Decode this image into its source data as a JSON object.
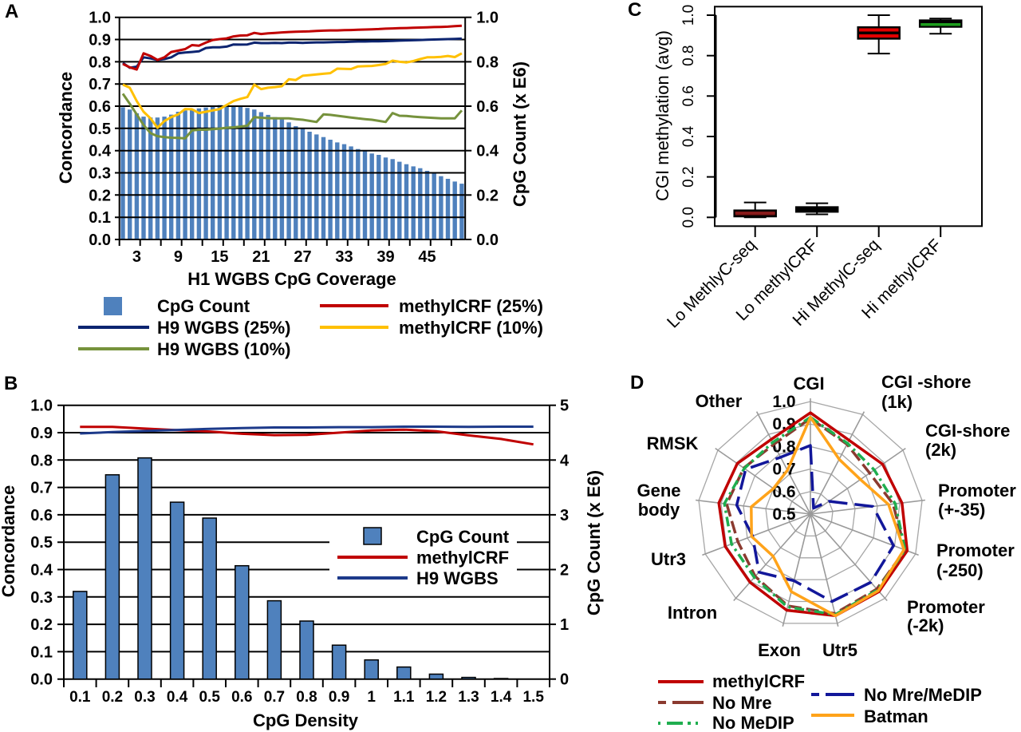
{
  "chart_data": [
    {
      "panel": "A",
      "type": "bar",
      "title": "",
      "xlabel": "H1 WGBS CpG Coverage",
      "ylabel": "Concordance",
      "y2label": "CpG Count (x E6)",
      "ylim": [
        0,
        1
      ],
      "y2lim": [
        0,
        1
      ],
      "grid": true,
      "legend": "bottom",
      "yticks": [
        "0.0",
        "0.1",
        "0.2",
        "0.3",
        "0.4",
        "0.5",
        "0.6",
        "0.7",
        "0.8",
        "0.9",
        "1.0"
      ],
      "y2ticks": [
        "0.0",
        "0.2",
        "0.4",
        "0.6",
        "0.8",
        "1.0"
      ],
      "x": [
        1,
        2,
        3,
        4,
        5,
        6,
        7,
        8,
        9,
        10,
        11,
        12,
        13,
        14,
        15,
        16,
        17,
        18,
        19,
        20,
        21,
        22,
        23,
        24,
        25,
        26,
        27,
        28,
        29,
        30,
        31,
        32,
        33,
        34,
        35,
        36,
        37,
        38,
        39,
        40,
        41,
        42,
        43,
        44,
        45,
        46,
        47,
        48,
        49,
        50
      ],
      "xtick_labels": [
        "3",
        "9",
        "15",
        "21",
        "27",
        "33",
        "39",
        "45"
      ],
      "series": [
        {
          "name": "CpG Count",
          "kind": "bar",
          "axis": "right",
          "color": "#4f81bd",
          "values": [
            0.595,
            0.585,
            0.568,
            0.553,
            0.549,
            0.549,
            0.553,
            0.562,
            0.575,
            0.581,
            0.587,
            0.59,
            0.594,
            0.601,
            0.605,
            0.605,
            0.602,
            0.6,
            0.592,
            0.585,
            0.573,
            0.561,
            0.551,
            0.542,
            0.527,
            0.51,
            0.5,
            0.485,
            0.473,
            0.461,
            0.449,
            0.437,
            0.429,
            0.419,
            0.407,
            0.398,
            0.387,
            0.381,
            0.369,
            0.362,
            0.35,
            0.339,
            0.329,
            0.321,
            0.309,
            0.299,
            0.285,
            0.273,
            0.261,
            0.251
          ]
        },
        {
          "name": "H9 WGBS (25%)",
          "kind": "line",
          "axis": "left",
          "color": "#0c2470",
          "values": [
            0.795,
            0.773,
            0.778,
            0.82,
            0.815,
            0.808,
            0.812,
            0.82,
            0.838,
            0.842,
            0.844,
            0.847,
            0.862,
            0.865,
            0.865,
            0.868,
            0.878,
            0.877,
            0.878,
            0.886,
            0.884,
            0.884,
            0.885,
            0.884,
            0.886,
            0.886,
            0.885,
            0.886,
            0.887,
            0.887,
            0.888,
            0.889,
            0.889,
            0.89,
            0.891,
            0.891,
            0.892,
            0.892,
            0.893,
            0.894,
            0.895,
            0.896,
            0.897,
            0.898,
            0.899,
            0.9,
            0.901,
            0.902,
            0.903,
            0.904
          ]
        },
        {
          "name": "H9 WGBS (10%)",
          "kind": "line",
          "axis": "left",
          "color": "#76923c",
          "values": [
            0.656,
            0.611,
            0.563,
            0.515,
            0.479,
            0.465,
            0.461,
            0.458,
            0.457,
            0.455,
            0.491,
            0.494,
            0.494,
            0.497,
            0.499,
            0.503,
            0.505,
            0.508,
            0.512,
            0.551,
            0.548,
            0.546,
            0.545,
            0.545,
            0.545,
            0.542,
            0.539,
            0.534,
            0.529,
            0.563,
            0.561,
            0.557,
            0.553,
            0.549,
            0.545,
            0.542,
            0.539,
            0.534,
            0.529,
            0.569,
            0.557,
            0.556,
            0.553,
            0.551,
            0.549,
            0.547,
            0.545,
            0.545,
            0.545,
            0.581
          ]
        },
        {
          "name": "methylCRF (25%)",
          "kind": "line",
          "axis": "left",
          "color": "#c00000",
          "values": [
            0.79,
            0.775,
            0.765,
            0.838,
            0.826,
            0.808,
            0.82,
            0.844,
            0.85,
            0.857,
            0.875,
            0.872,
            0.886,
            0.898,
            0.902,
            0.905,
            0.914,
            0.918,
            0.919,
            0.93,
            0.925,
            0.928,
            0.93,
            0.932,
            0.934,
            0.935,
            0.936,
            0.937,
            0.939,
            0.94,
            0.941,
            0.941,
            0.942,
            0.943,
            0.944,
            0.945,
            0.946,
            0.947,
            0.949,
            0.95,
            0.951,
            0.952,
            0.953,
            0.954,
            0.955,
            0.956,
            0.957,
            0.958,
            0.96,
            0.962
          ]
        },
        {
          "name": "methylCRF (10%)",
          "kind": "line",
          "axis": "left",
          "color": "#ffc000",
          "values": [
            0.697,
            0.683,
            0.623,
            0.575,
            0.545,
            0.503,
            0.533,
            0.551,
            0.563,
            0.587,
            0.586,
            0.569,
            0.575,
            0.581,
            0.587,
            0.605,
            0.623,
            0.633,
            0.641,
            0.697,
            0.677,
            0.683,
            0.686,
            0.69,
            0.721,
            0.718,
            0.737,
            0.74,
            0.743,
            0.746,
            0.749,
            0.769,
            0.768,
            0.767,
            0.779,
            0.78,
            0.781,
            0.785,
            0.79,
            0.805,
            0.8,
            0.797,
            0.803,
            0.812,
            0.82,
            0.82,
            0.822,
            0.826,
            0.821,
            0.838
          ]
        }
      ]
    },
    {
      "panel": "B",
      "type": "bar",
      "title": "",
      "xlabel": "CpG Density",
      "ylabel": "Concordance",
      "y2label": "CpG Count (x E6)",
      "ylim": [
        0,
        1
      ],
      "y2lim": [
        0,
        5
      ],
      "grid": true,
      "legend": "center-right",
      "yticks": [
        "0.0",
        "0.1",
        "0.2",
        "0.3",
        "0.4",
        "0.5",
        "0.6",
        "0.7",
        "0.8",
        "0.9",
        "1.0"
      ],
      "y2ticks": [
        "0",
        "1",
        "2",
        "3",
        "4",
        "5"
      ],
      "categories": [
        "0.1",
        "0.2",
        "0.3",
        "0.4",
        "0.5",
        "0.6",
        "0.7",
        "0.8",
        "0.9",
        "1",
        "1.1",
        "1.2",
        "1.3",
        "1.4",
        "1.5"
      ],
      "series": [
        {
          "name": "CpG Count",
          "kind": "bar",
          "axis": "right",
          "color": "#4f81bd",
          "values": [
            1.6,
            3.73,
            4.04,
            3.23,
            2.94,
            2.07,
            1.43,
            1.06,
            0.62,
            0.35,
            0.22,
            0.09,
            0.03,
            0.01,
            0.0
          ]
        },
        {
          "name": "methylCRF",
          "kind": "line",
          "axis": "left",
          "color": "#c00000",
          "values": [
            0.921,
            0.921,
            0.915,
            0.909,
            0.904,
            0.896,
            0.891,
            0.892,
            0.9,
            0.908,
            0.911,
            0.905,
            0.89,
            0.877,
            0.857
          ]
        },
        {
          "name": "H9 WGBS",
          "kind": "line",
          "axis": "left",
          "color": "#1d3a8a",
          "values": [
            0.897,
            0.902,
            0.906,
            0.91,
            0.914,
            0.917,
            0.919,
            0.919,
            0.92,
            0.92,
            0.922,
            0.922,
            0.921,
            0.922,
            0.922
          ]
        }
      ]
    },
    {
      "panel": "C",
      "type": "box",
      "title": "",
      "xlabel": "",
      "ylabel": "CGI methylation (avg)",
      "ylim": [
        0,
        1
      ],
      "grid": false,
      "yticks": [
        "0.0",
        "0.2",
        "0.4",
        "0.6",
        "0.8",
        "1.0"
      ],
      "boxes": [
        {
          "label": "Lo MethlyC-seq",
          "whisker_low": 0.0,
          "q1": 0.005,
          "median": 0.021,
          "q3": 0.034,
          "whisker_high": 0.074,
          "fill": "#5c0b0b",
          "median_color": "#8a1c1c"
        },
        {
          "label": "Lo methylCRF",
          "whisker_low": 0.015,
          "q1": 0.028,
          "median": 0.038,
          "q3": 0.05,
          "whisker_high": 0.07,
          "fill": "#000000",
          "median_color": "#000000"
        },
        {
          "label": "Hi MethylC-seq",
          "whisker_low": 0.81,
          "q1": 0.884,
          "median": 0.912,
          "q3": 0.94,
          "whisker_high": 1.0,
          "fill": "#e00000",
          "median_color": "#000000"
        },
        {
          "label": "Hi methylCRF",
          "whisker_low": 0.908,
          "q1": 0.943,
          "median": 0.954,
          "q3": 0.974,
          "whisker_high": 0.983,
          "fill": "#000000",
          "median_color": "#1e9e1e"
        }
      ]
    },
    {
      "panel": "D",
      "type": "radar",
      "title": "",
      "radial_range": [
        0.5,
        1.0
      ],
      "radial_ticks": [
        "0.5",
        "0.6",
        "0.7",
        "0.8",
        "0.9",
        "1.0"
      ],
      "grid": true,
      "legend": "bottom",
      "axes": [
        {
          "name": "CGI",
          "lines": [
            "CGI"
          ]
        },
        {
          "name": "CGI -shore (1k)",
          "lines": [
            "CGI -shore",
            "(1k)"
          ]
        },
        {
          "name": "CGI-shore (2k)",
          "lines": [
            "CGI-shore",
            "(2k)"
          ]
        },
        {
          "name": "Promoter (+-35)",
          "lines": [
            "Promoter",
            "(+-35)"
          ]
        },
        {
          "name": "Promoter (-250)",
          "lines": [
            "Promoter",
            "(-250)"
          ]
        },
        {
          "name": "Promoter (-2k)",
          "lines": [
            "Promoter",
            "(-2k)"
          ]
        },
        {
          "name": "Utr5",
          "lines": [
            "Utr5"
          ]
        },
        {
          "name": "Exon",
          "lines": [
            "Exon"
          ]
        },
        {
          "name": "Intron",
          "lines": [
            "Intron"
          ]
        },
        {
          "name": "Utr3",
          "lines": [
            "Utr3"
          ]
        },
        {
          "name": "Gene body",
          "lines": [
            "Gene",
            "body"
          ]
        },
        {
          "name": "RMSK",
          "lines": [
            "RMSK"
          ]
        },
        {
          "name": "Other",
          "lines": [
            "Other"
          ]
        }
      ],
      "series": [
        {
          "name": "methylCRF",
          "color": "#c00000",
          "style": "solid",
          "values": [
            0.95,
            0.87,
            0.89,
            0.91,
            0.96,
            0.96,
            0.965,
            0.94,
            0.905,
            0.905,
            0.91,
            0.895,
            0.875
          ]
        },
        {
          "name": "No Mre",
          "color": "#8b3a2f",
          "style": "dashed",
          "values": [
            0.925,
            0.85,
            0.82,
            0.87,
            0.95,
            0.945,
            0.955,
            0.92,
            0.87,
            0.845,
            0.875,
            0.86,
            0.85
          ]
        },
        {
          "name": "No MeDIP",
          "color": "#1fae4f",
          "style": "dash-dot",
          "values": [
            0.93,
            0.855,
            0.845,
            0.88,
            0.95,
            0.95,
            0.96,
            0.925,
            0.876,
            0.875,
            0.885,
            0.857,
            0.86
          ]
        },
        {
          "name": "No Mre/MeDIP",
          "color": "#12179a",
          "style": "long-dashed",
          "values": [
            0.805,
            0.53,
            0.6,
            0.78,
            0.895,
            0.905,
            0.9,
            0.805,
            0.845,
            0.775,
            0.83,
            0.85,
            0.785
          ]
        },
        {
          "name": "Batman",
          "color": "#ffa31a",
          "style": "solid",
          "values": [
            0.93,
            0.775,
            0.77,
            0.85,
            0.945,
            0.955,
            0.965,
            0.855,
            0.75,
            0.78,
            0.765,
            0.7,
            0.72
          ]
        }
      ]
    }
  ]
}
